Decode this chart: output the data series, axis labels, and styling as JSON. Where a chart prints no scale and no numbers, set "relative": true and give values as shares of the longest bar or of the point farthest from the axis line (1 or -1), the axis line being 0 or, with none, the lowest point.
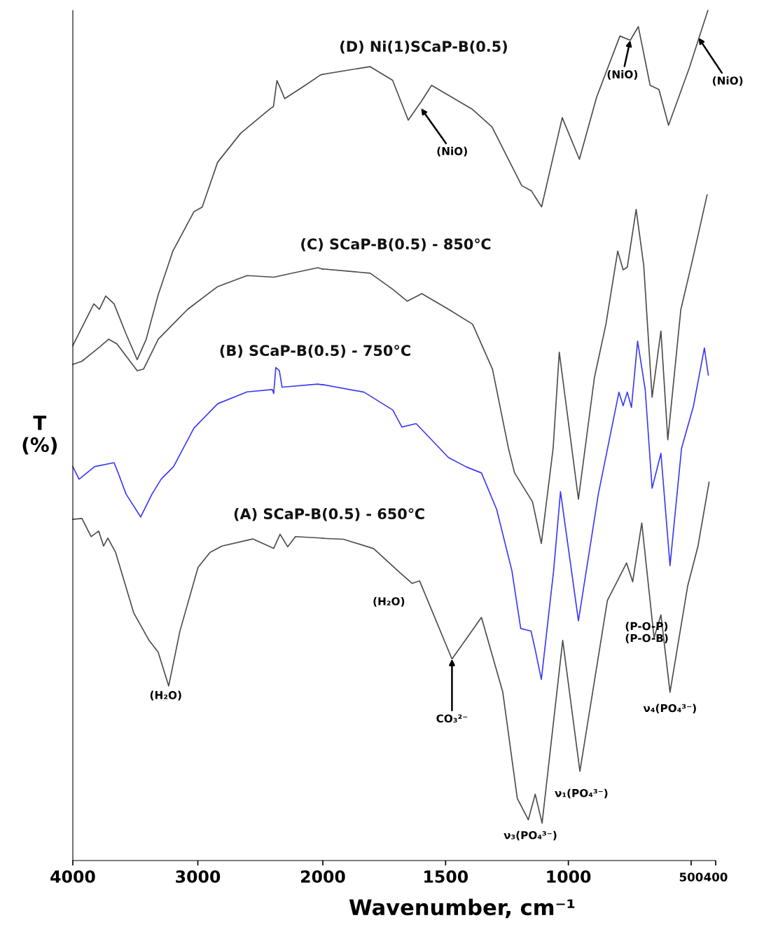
{
  "chart_data": [
    {
      "type": "line",
      "relative": true,
      "ylabel": "T\n(%)",
      "tick_labels": "x",
      "xlim": [
        4000,
        2000
      ],
      "xticks": [
        4000,
        3000,
        2000
      ],
      "series": [
        {
          "color": "#4d4d4d",
          "x": [
            4000,
            3832,
            3787,
            3737,
            3670,
            3575,
            3485,
            3413,
            3318,
            3200,
            3032,
            2965,
            2842,
            2657,
            2423,
            2395,
            2367,
            2339,
            2305,
            2160,
            2020,
            2000
          ],
          "values": [
            0.655,
            0.708,
            0.701,
            0.718,
            0.708,
            0.67,
            0.637,
            0.663,
            0.719,
            0.775,
            0.825,
            0.831,
            0.888,
            0.925,
            0.956,
            0.959,
            0.992,
            0.982,
            0.969,
            0.984,
            0.999,
            1.0
          ]
        },
        {
          "color": "#4d4d4d",
          "x": [
            4000,
            3927,
            3787,
            3714,
            3647,
            3485,
            3434,
            3317,
            3082,
            2841,
            2606,
            2393,
            2040,
            2000
          ],
          "values": [
            0.631,
            0.635,
            0.653,
            0.663,
            0.657,
            0.623,
            0.625,
            0.663,
            0.701,
            0.73,
            0.744,
            0.742,
            0.754,
            0.752
          ]
        },
        {
          "name": "(B) SCaP-B(0.5) - 750°C",
          "color": "#3b3bf5",
          "x": [
            4000,
            3950,
            3826,
            3670,
            3630,
            3574,
            3457,
            3367,
            3294,
            3194,
            3031,
            2841,
            2606,
            2404,
            2393,
            2376,
            2348,
            2326,
            2040,
            2000
          ],
          "values": [
            0.501,
            0.485,
            0.501,
            0.506,
            0.49,
            0.466,
            0.437,
            0.466,
            0.485,
            0.501,
            0.55,
            0.581,
            0.596,
            0.599,
            0.594,
            0.627,
            0.623,
            0.602,
            0.606,
            0.605
          ]
        },
        {
          "color": "#4d4d4d",
          "x": [
            4000,
            3927,
            3854,
            3793,
            3754,
            3720,
            3658,
            3513,
            3390,
            3317,
            3233,
            3143,
            2998,
            2902,
            2807,
            2561,
            2393,
            2342,
            2281,
            2219,
            2000
          ],
          "values": [
            0.434,
            0.435,
            0.412,
            0.419,
            0.4,
            0.41,
            0.392,
            0.315,
            0.28,
            0.265,
            0.222,
            0.292,
            0.373,
            0.392,
            0.4,
            0.409,
            0.397,
            0.415,
            0.399,
            0.412,
            0.41
          ]
        }
      ],
      "annotations": [
        {
          "text": "(H₂O)",
          "x": 3233,
          "y": 0.222
        }
      ]
    },
    {
      "type": "line",
      "relative": true,
      "xlabel": "Wavenumber, cm⁻¹",
      "tick_labels": "x",
      "xlim": [
        2000,
        400
      ],
      "xticks": [
        1500,
        1000,
        500,
        400
      ],
      "series": [
        {
          "name": "(D) Ni(1)SCaP-B(0.5)",
          "color": "#4d4d4d",
          "x": [
            2000,
            1808,
            1716,
            1652,
            1599,
            1557,
            1392,
            1311,
            1190,
            1151,
            1109,
            1025,
            955,
            885,
            790,
            748,
            715,
            667,
            631,
            592,
            508,
            432
          ],
          "values": [
            0.925,
            0.934,
            0.918,
            0.871,
            0.893,
            0.912,
            0.884,
            0.863,
            0.794,
            0.788,
            0.769,
            0.874,
            0.825,
            0.898,
            0.97,
            0.965,
            0.981,
            0.912,
            0.907,
            0.865,
            0.932,
            1.0
          ]
        },
        {
          "name": "(C) SCaP-B(0.5) - 850℃",
          "color": "#4d4d4d",
          "x": [
            2000,
            1807,
            1715,
            1656,
            1597,
            1485,
            1390,
            1309,
            1244,
            1219,
            1146,
            1110,
            1062,
            1037,
            959,
            894,
            847,
            799,
            777,
            760,
            724,
            693,
            659,
            623,
            595,
            542,
            494,
            435
          ],
          "values": [
            0.696,
            0.691,
            0.672,
            0.658,
            0.667,
            0.648,
            0.631,
            0.578,
            0.485,
            0.456,
            0.422,
            0.373,
            0.485,
            0.598,
            0.425,
            0.568,
            0.631,
            0.717,
            0.695,
            0.698,
            0.766,
            0.7,
            0.545,
            0.623,
            0.495,
            0.648,
            0.707,
            0.783
          ]
        },
        {
          "color": "#3b3bf5",
          "x": [
            2000,
            1832,
            1715,
            1678,
            1620,
            1488,
            1415,
            1354,
            1292,
            1230,
            1194,
            1152,
            1135,
            1110,
            1060,
            1032,
            959,
            878,
            794,
            777,
            760,
            743,
            718,
            687,
            659,
            623,
            586,
            539,
            491,
            446,
            430
          ],
          "values": [
            0.56,
            0.551,
            0.53,
            0.51,
            0.514,
            0.474,
            0.463,
            0.456,
            0.413,
            0.341,
            0.273,
            0.27,
            0.248,
            0.213,
            0.341,
            0.434,
            0.282,
            0.431,
            0.551,
            0.535,
            0.551,
            0.533,
            0.611,
            0.554,
            0.438,
            0.479,
            0.347,
            0.485,
            0.534,
            0.603,
            0.571
          ]
        },
        {
          "name": "(A) SCaP-B(0.5) - 650℃",
          "color": "#4d4d4d",
          "x": [
            2000,
            1916,
            1793,
            1695,
            1636,
            1606,
            1474,
            1354,
            1267,
            1208,
            1163,
            1135,
            1107,
            1023,
            953,
            841,
            763,
            738,
            701,
            651,
            623,
            586,
            514,
            472,
            427
          ],
          "values": [
            0.379,
            0.378,
            0.367,
            0.341,
            0.326,
            0.329,
            0.237,
            0.286,
            0.198,
            0.073,
            0.048,
            0.078,
            0.044,
            0.259,
            0.105,
            0.306,
            0.35,
            0.328,
            0.397,
            0.262,
            0.289,
            0.198,
            0.323,
            0.37,
            0.445
          ]
        }
      ],
      "annotations": [
        {
          "text": "(NiO)",
          "x": 1600,
          "y": 0.885
        },
        {
          "text": "(NiO)",
          "x": 748,
          "y": 0.965
        },
        {
          "text": "(NiO)",
          "x": 470,
          "y": 0.968
        },
        {
          "text": "(H₂O)",
          "x": 1636,
          "y": 0.326
        },
        {
          "text": "CO₃²⁻",
          "x": 1474,
          "y": 0.237
        },
        {
          "text": "ν₃(PO₄³⁻)",
          "x": 1107,
          "y": 0.044
        },
        {
          "text": "ν₁(PO₄³⁻)",
          "x": 953,
          "y": 0.105
        },
        {
          "text": "(P-O-P)\n(P-O-B)",
          "x": 841,
          "y": 0.306
        },
        {
          "text": "ν₄(PO₄³⁻)",
          "x": 586,
          "y": 0.198
        }
      ]
    }
  ]
}
